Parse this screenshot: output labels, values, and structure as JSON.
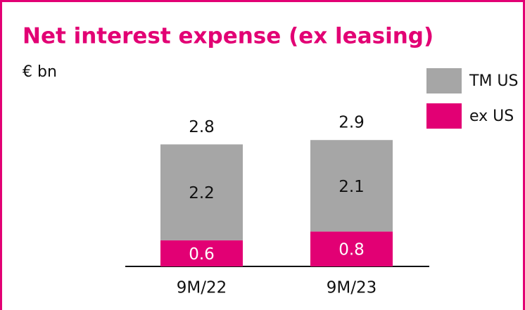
{
  "chart_data": {
    "type": "stacked_bar",
    "title": "Net interest expense (ex leasing)",
    "subtitle": "€ bn",
    "categories": [
      "9M/22",
      "9M/23"
    ],
    "series": [
      {
        "name": "ex US",
        "color": "#e20074",
        "values": [
          0.6,
          0.8
        ]
      },
      {
        "name": "TM US",
        "color": "#a6a6a6",
        "values": [
          2.2,
          2.1
        ]
      }
    ],
    "totals": [
      2.8,
      2.9
    ],
    "legend": "top-right"
  }
}
